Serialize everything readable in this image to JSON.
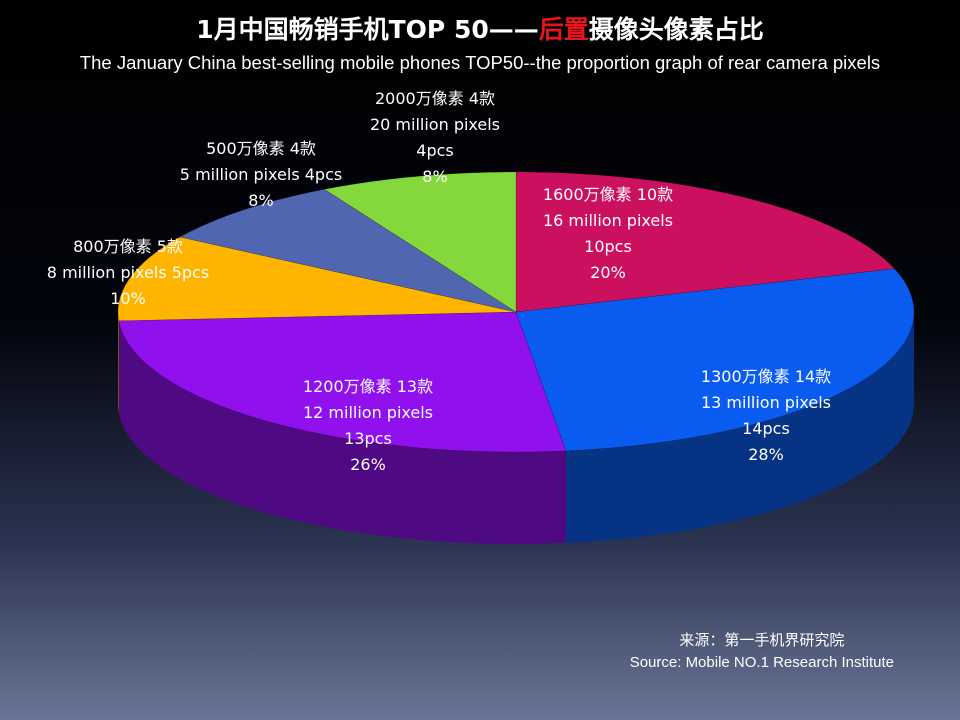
{
  "header": {
    "title_part1": "1月中国畅销手机TOP 50——",
    "title_highlight": "后置",
    "title_part2": "摄像头像素占比",
    "subtitle": "The January China best-selling mobile phones TOP50--the proportion graph of rear camera pixels"
  },
  "chart_data": {
    "type": "pie",
    "title": "1月中国畅销手机TOP 50——后置摄像头像素占比",
    "subtitle": "The January China best-selling mobile phones TOP50--the proportion graph of rear camera pixels",
    "slices": [
      {
        "cn": "1600万像素 10款",
        "en": "16 million pixels",
        "count": "10pcs",
        "pct": "20%",
        "value": 20,
        "color": "#cc1060"
      },
      {
        "cn": "1300万像素 14款",
        "en": "13 million pixels",
        "count": "14pcs",
        "pct": "28%",
        "value": 28,
        "color": "#0a5cf0"
      },
      {
        "cn": "1200万像素 13款",
        "en": "12 million pixels",
        "count": "13pcs",
        "pct": "26%",
        "value": 26,
        "color": "#9010ee"
      },
      {
        "cn": "800万像素 5款",
        "en": "8 million pixels 5pcs",
        "count": "",
        "pct": "10%",
        "value": 10,
        "color": "#ffb400"
      },
      {
        "cn": "500万像素 4款",
        "en": "5 million pixels 4pcs",
        "count": "",
        "pct": "8%",
        "value": 8,
        "color": "#5066b0"
      },
      {
        "cn": "2000万像素 4款",
        "en": "20 million pixels",
        "count": "4pcs",
        "pct": "8%",
        "value": 8,
        "color": "#84d83c"
      }
    ]
  },
  "source": {
    "cn": "来源：第一手机界研究院",
    "en": "Source: Mobile NO.1 Research Institute"
  }
}
